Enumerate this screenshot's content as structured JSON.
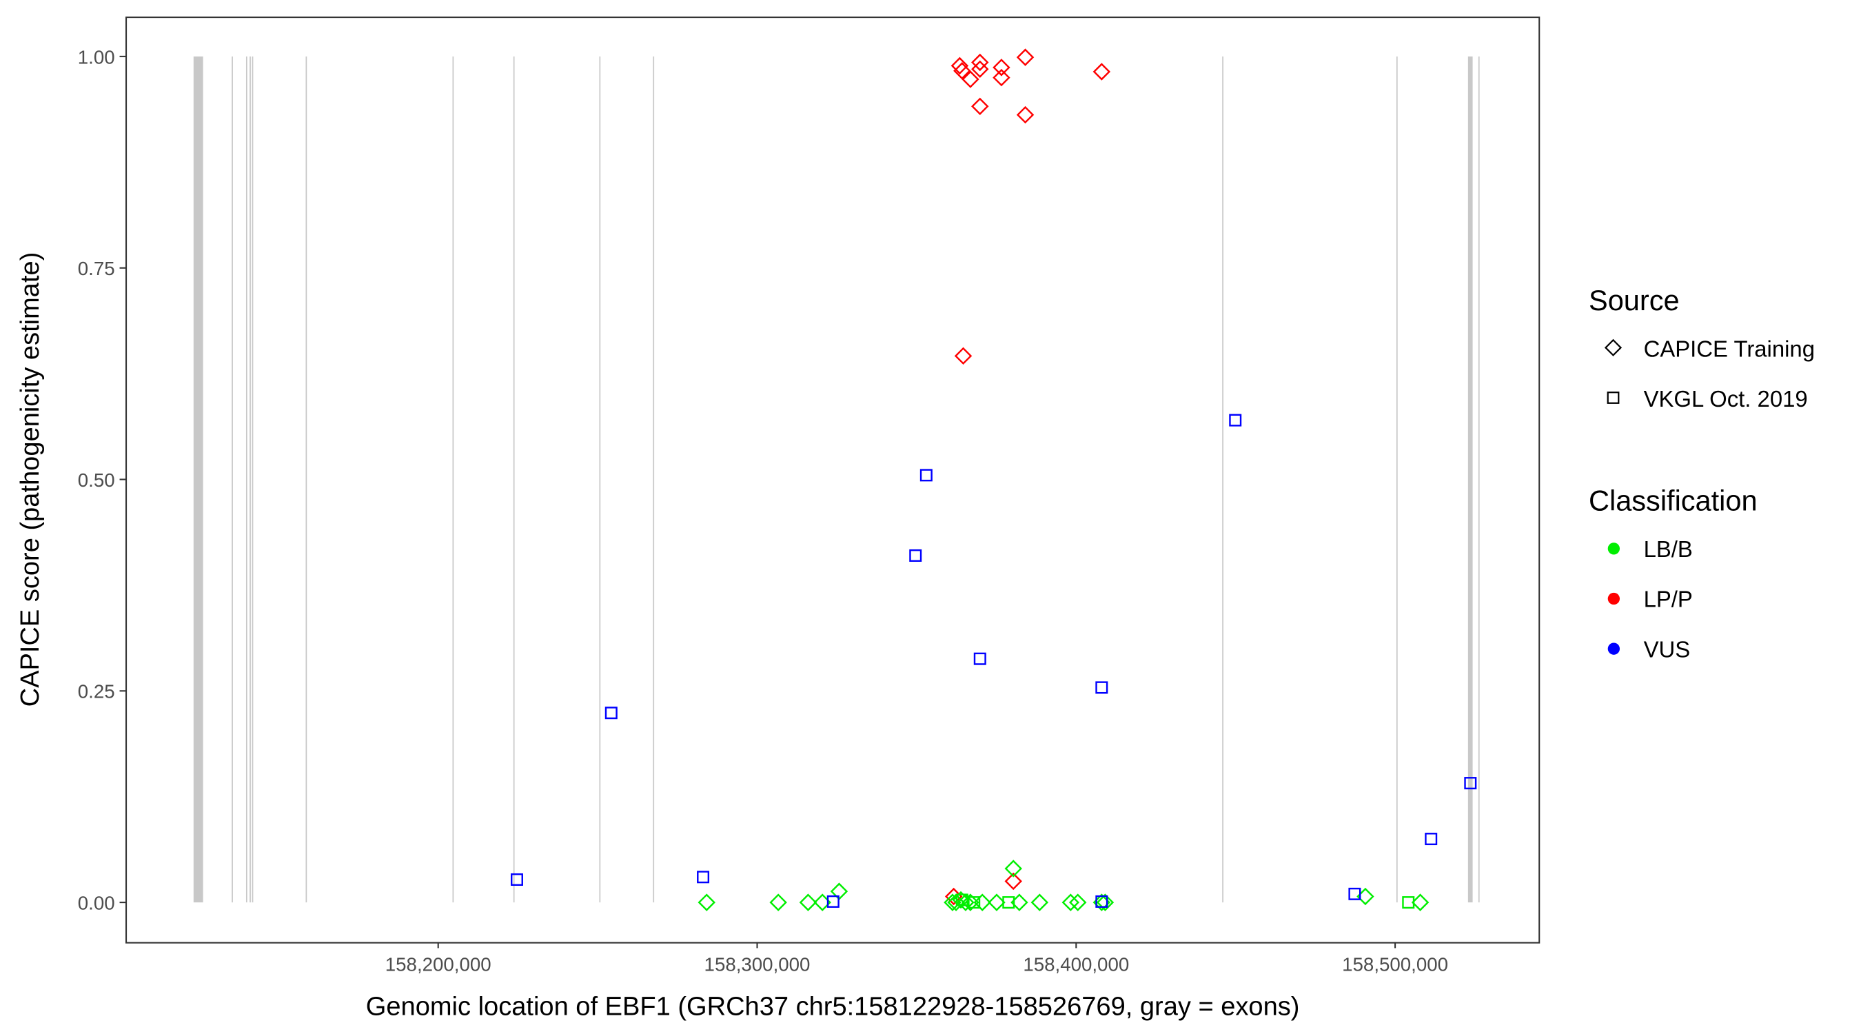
{
  "chart_data": {
    "type": "scatter",
    "xlabel": "Genomic location of EBF1 (GRCh37 chr5:158122928-158526769, gray = exons)",
    "ylabel": "CAPICE score (pathogenicity estimate)",
    "xlim": [
      158102000,
      158545000
    ],
    "ylim": [
      -0.047,
      1.047
    ],
    "x_ticks": [
      158200000,
      158300000,
      158400000,
      158500000
    ],
    "x_tick_labels": [
      "158,200,000",
      "158,300,000",
      "158,400,000",
      "158,500,000"
    ],
    "y_ticks": [
      0,
      0.25,
      0.5,
      0.75,
      1.0
    ],
    "y_tick_labels": [
      "0.00",
      "0.25",
      "0.50",
      "0.75",
      "1.00"
    ],
    "grid": false,
    "exons": [
      [
        158123310,
        158126300
      ],
      [
        158135280,
        158135500
      ],
      [
        158139770,
        158139990
      ],
      [
        158140890,
        158141110
      ],
      [
        158141640,
        158141860
      ],
      [
        158158470,
        158158690
      ],
      [
        158204490,
        158204710
      ],
      [
        158223570,
        158223790
      ],
      [
        158250510,
        158250730
      ],
      [
        158267340,
        158267560
      ],
      [
        158445790,
        158446010
      ],
      [
        158500400,
        158500620
      ],
      [
        158522850,
        158524300
      ],
      [
        158526100,
        158526400
      ]
    ],
    "legend": {
      "placement": "right",
      "source_title": "Source",
      "source_entries": [
        {
          "label": "CAPICE Training",
          "shape": "diamond"
        },
        {
          "label": "VKGL Oct. 2019",
          "shape": "square"
        }
      ],
      "class_title": "Classification",
      "class_entries": [
        {
          "label": "LB/B",
          "color": "#00ee00"
        },
        {
          "label": "LP/P",
          "color": "#ff0000"
        },
        {
          "label": "VUS",
          "color": "#0000ff"
        }
      ]
    },
    "series": [
      {
        "name": "CAPICE Training LP/P",
        "shape": "diamond",
        "color": "#ff0000",
        "points": [
          [
            158363500,
            0.989
          ],
          [
            158364240,
            0.983
          ],
          [
            158369850,
            0.993
          ],
          [
            158369850,
            0.985
          ],
          [
            158366860,
            0.973
          ],
          [
            158376580,
            0.987
          ],
          [
            158376580,
            0.975
          ],
          [
            158384060,
            0.999
          ],
          [
            158408000,
            0.982
          ],
          [
            158369850,
            0.941
          ],
          [
            158384060,
            0.931
          ],
          [
            158364610,
            0.646
          ],
          [
            158380320,
            0.025
          ],
          [
            158361620,
            0.007
          ]
        ]
      },
      {
        "name": "CAPICE Training LB/B",
        "shape": "diamond",
        "color": "#00ee00",
        "points": [
          [
            158284170,
            0
          ],
          [
            158306620,
            0
          ],
          [
            158315970,
            0
          ],
          [
            158320460,
            0
          ],
          [
            158325700,
            0.013
          ],
          [
            158361240,
            0
          ],
          [
            158362360,
            0
          ],
          [
            158363860,
            0.003
          ],
          [
            158365350,
            0
          ],
          [
            158366850,
            0
          ],
          [
            158370590,
            0
          ],
          [
            158375080,
            0
          ],
          [
            158380320,
            0.04
          ],
          [
            158382190,
            0
          ],
          [
            158388550,
            0
          ],
          [
            158398270,
            0
          ],
          [
            158400520,
            0
          ],
          [
            158408000,
            0
          ],
          [
            158409100,
            0
          ],
          [
            158490670,
            0.007
          ],
          [
            158507880,
            0
          ]
        ]
      },
      {
        "name": "VKGL Oct. 2019 LB/B",
        "shape": "square",
        "color": "#00ee00",
        "points": [
          [
            158378820,
            0
          ],
          [
            158364230,
            0.003
          ],
          [
            158368000,
            0
          ],
          [
            158504140,
            0
          ]
        ]
      },
      {
        "name": "VKGL Oct. 2019 VUS",
        "shape": "square",
        "color": "#0000ff",
        "points": [
          [
            158224690,
            0.027
          ],
          [
            158254250,
            0.224
          ],
          [
            158283050,
            0.03
          ],
          [
            158323830,
            0.001
          ],
          [
            158349640,
            0.41
          ],
          [
            158353010,
            0.505
          ],
          [
            158369850,
            0.288
          ],
          [
            158408000,
            0.254
          ],
          [
            158408000,
            0.001
          ],
          [
            158449900,
            0.57
          ],
          [
            158487320,
            0.01
          ],
          [
            158511260,
            0.075
          ],
          [
            158523600,
            0.141
          ]
        ]
      }
    ]
  }
}
